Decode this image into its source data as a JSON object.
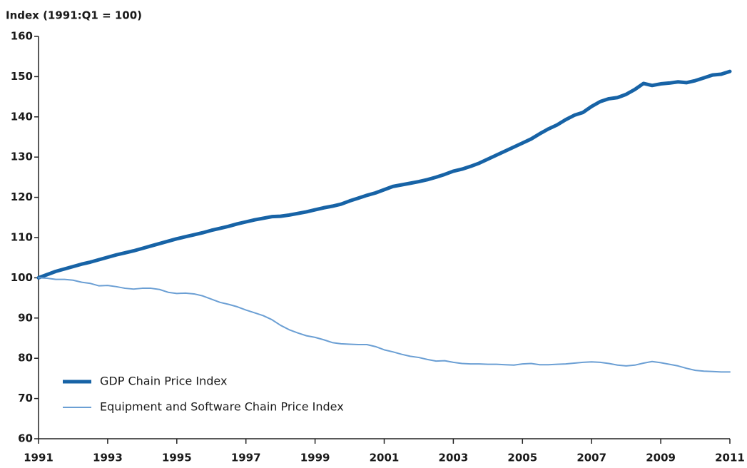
{
  "chart_data": {
    "type": "line",
    "y_axis_label": "Index (1991:Q1 = 100)",
    "x": [
      1991,
      1991.25,
      1991.5,
      1991.75,
      1992,
      1992.25,
      1992.5,
      1992.75,
      1993,
      1993.25,
      1993.5,
      1993.75,
      1994,
      1994.25,
      1994.5,
      1994.75,
      1995,
      1995.25,
      1995.5,
      1995.75,
      1996,
      1996.25,
      1996.5,
      1996.75,
      1997,
      1997.25,
      1997.5,
      1997.75,
      1998,
      1998.25,
      1998.5,
      1998.75,
      1999,
      1999.25,
      1999.5,
      1999.75,
      2000,
      2000.25,
      2000.5,
      2000.75,
      2001,
      2001.25,
      2001.5,
      2001.75,
      2002,
      2002.25,
      2002.5,
      2002.75,
      2003,
      2003.25,
      2003.5,
      2003.75,
      2004,
      2004.25,
      2004.5,
      2004.75,
      2005,
      2005.25,
      2005.5,
      2005.75,
      2006,
      2006.25,
      2006.5,
      2006.75,
      2007,
      2007.25,
      2007.5,
      2007.75,
      2008,
      2008.25,
      2008.5,
      2008.75,
      2009,
      2009.25,
      2009.5,
      2009.75,
      2010,
      2010.25,
      2010.5,
      2010.75,
      2011
    ],
    "series": [
      {
        "name": "GDP Chain Price Index",
        "color": "#1763a6",
        "width": 5,
        "values": [
          100,
          100.8,
          101.6,
          102.2,
          102.8,
          103.4,
          103.9,
          104.5,
          105.1,
          105.7,
          106.2,
          106.7,
          107.3,
          107.9,
          108.5,
          109.1,
          109.7,
          110.2,
          110.7,
          111.2,
          111.8,
          112.3,
          112.8,
          113.4,
          113.9,
          114.4,
          114.8,
          115.2,
          115.3,
          115.6,
          116.0,
          116.4,
          116.9,
          117.4,
          117.8,
          118.3,
          119.1,
          119.8,
          120.5,
          121.1,
          121.9,
          122.7,
          123.1,
          123.5,
          123.9,
          124.4,
          125.0,
          125.7,
          126.5,
          127.0,
          127.7,
          128.5,
          129.5,
          130.5,
          131.5,
          132.5,
          133.5,
          134.5,
          135.8,
          137.0,
          138.0,
          139.3,
          140.4,
          141.1,
          142.6,
          143.8,
          144.5,
          144.8,
          145.6,
          146.8,
          148.3,
          147.8,
          148.2,
          148.4,
          148.7,
          148.5,
          149.0,
          149.7,
          150.4,
          150.6,
          151.3
        ]
      },
      {
        "name": "Equipment and Software Chain Price Index",
        "color": "#6b9fd4",
        "width": 2,
        "values": [
          100,
          99.9,
          99.6,
          99.6,
          99.4,
          98.9,
          98.6,
          98.0,
          98.1,
          97.8,
          97.4,
          97.2,
          97.4,
          97.4,
          97.1,
          96.4,
          96.1,
          96.2,
          96.0,
          95.5,
          94.7,
          93.9,
          93.4,
          92.8,
          92.0,
          91.3,
          90.6,
          89.6,
          88.2,
          87.1,
          86.3,
          85.6,
          85.2,
          84.6,
          83.9,
          83.6,
          83.5,
          83.4,
          83.4,
          82.9,
          82.1,
          81.6,
          81.0,
          80.5,
          80.2,
          79.7,
          79.3,
          79.4,
          79.0,
          78.7,
          78.6,
          78.6,
          78.5,
          78.5,
          78.4,
          78.3,
          78.6,
          78.7,
          78.4,
          78.4,
          78.5,
          78.6,
          78.8,
          79.0,
          79.1,
          79.0,
          78.7,
          78.3,
          78.1,
          78.3,
          78.8,
          79.2,
          78.9,
          78.5,
          78.1,
          77.5,
          77.0,
          76.8,
          76.7,
          76.6,
          76.6
        ]
      }
    ],
    "xlim": [
      1991,
      2011
    ],
    "xticks": [
      1991,
      1993,
      1995,
      1997,
      1999,
      2001,
      2003,
      2005,
      2007,
      2009,
      2011
    ],
    "ylim": [
      60,
      160
    ],
    "yticks": [
      60,
      70,
      80,
      90,
      100,
      110,
      120,
      130,
      140,
      150,
      160
    ],
    "legend": "lower left"
  }
}
